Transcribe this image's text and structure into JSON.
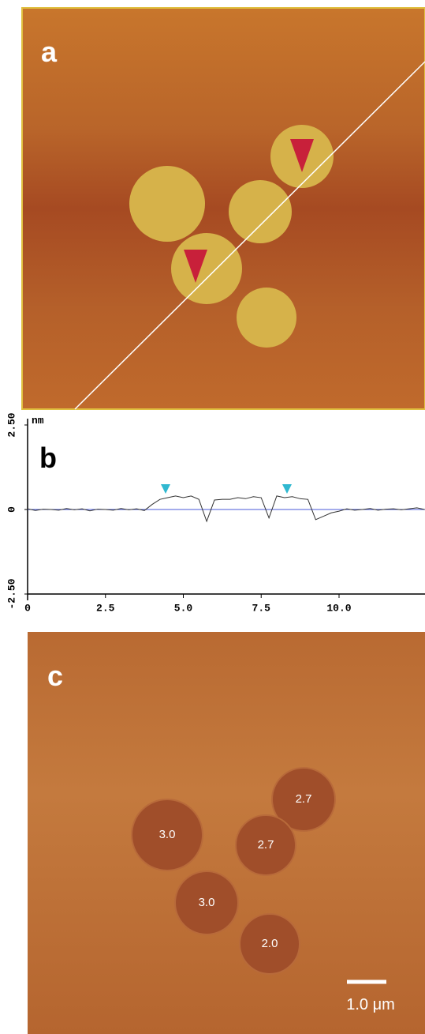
{
  "panel_a": {
    "label": "a"
  },
  "chart_data": {
    "type": "line",
    "label": "b",
    "y_unit": "nm",
    "color": "#333333",
    "x": [
      0,
      0.25,
      0.5,
      0.75,
      1,
      1.25,
      1.5,
      1.75,
      2,
      2.25,
      2.5,
      2.75,
      3,
      3.25,
      3.5,
      3.75,
      4,
      4.25,
      4.5,
      4.75,
      5,
      5.25,
      5.5,
      5.75,
      6,
      6.25,
      6.5,
      6.75,
      7,
      7.25,
      7.5,
      7.75,
      8,
      8.25,
      8.5,
      8.75,
      9,
      9.25,
      9.5,
      9.75,
      10,
      10.25,
      10.5,
      10.75,
      11,
      11.25,
      11.5,
      11.75,
      12,
      12.25,
      12.5,
      12.75
    ],
    "values": [
      0.02,
      -0.03,
      0.01,
      0,
      -0.02,
      0.03,
      -0.01,
      0.02,
      -0.04,
      0.01,
      0,
      -0.02,
      0.03,
      -0.01,
      0.02,
      -0.03,
      0.15,
      0.3,
      0.35,
      0.4,
      0.35,
      0.4,
      0.3,
      -0.35,
      0.28,
      0.3,
      0.3,
      0.35,
      0.32,
      0.38,
      0.35,
      -0.25,
      0.4,
      0.35,
      0.38,
      0.32,
      0.3,
      -0.3,
      -0.2,
      -0.1,
      -0.05,
      0.02,
      -0.02,
      0,
      0.03,
      -0.02,
      0.01,
      0.02,
      -0.01,
      0.02,
      0.05,
      0
    ],
    "xlim": [
      0,
      12.76
    ],
    "ylim": [
      -2.5,
      2.5
    ],
    "xticks": [
      0,
      2.5,
      {
        "value": 5,
        "label": "5.0"
      },
      7.5,
      {
        "value": 10,
        "label": "10.0"
      }
    ],
    "yticks": [
      {
        "value": 2.5,
        "label": "2.50"
      },
      0,
      {
        "value": -2.5,
        "label": "-2.50"
      }
    ]
  },
  "panel_c": {
    "label": "c",
    "domain_labels": [
      "2.7",
      "3.0",
      "2.7",
      "3.0",
      "2.0"
    ],
    "scale_bar": "1.0 μm"
  }
}
